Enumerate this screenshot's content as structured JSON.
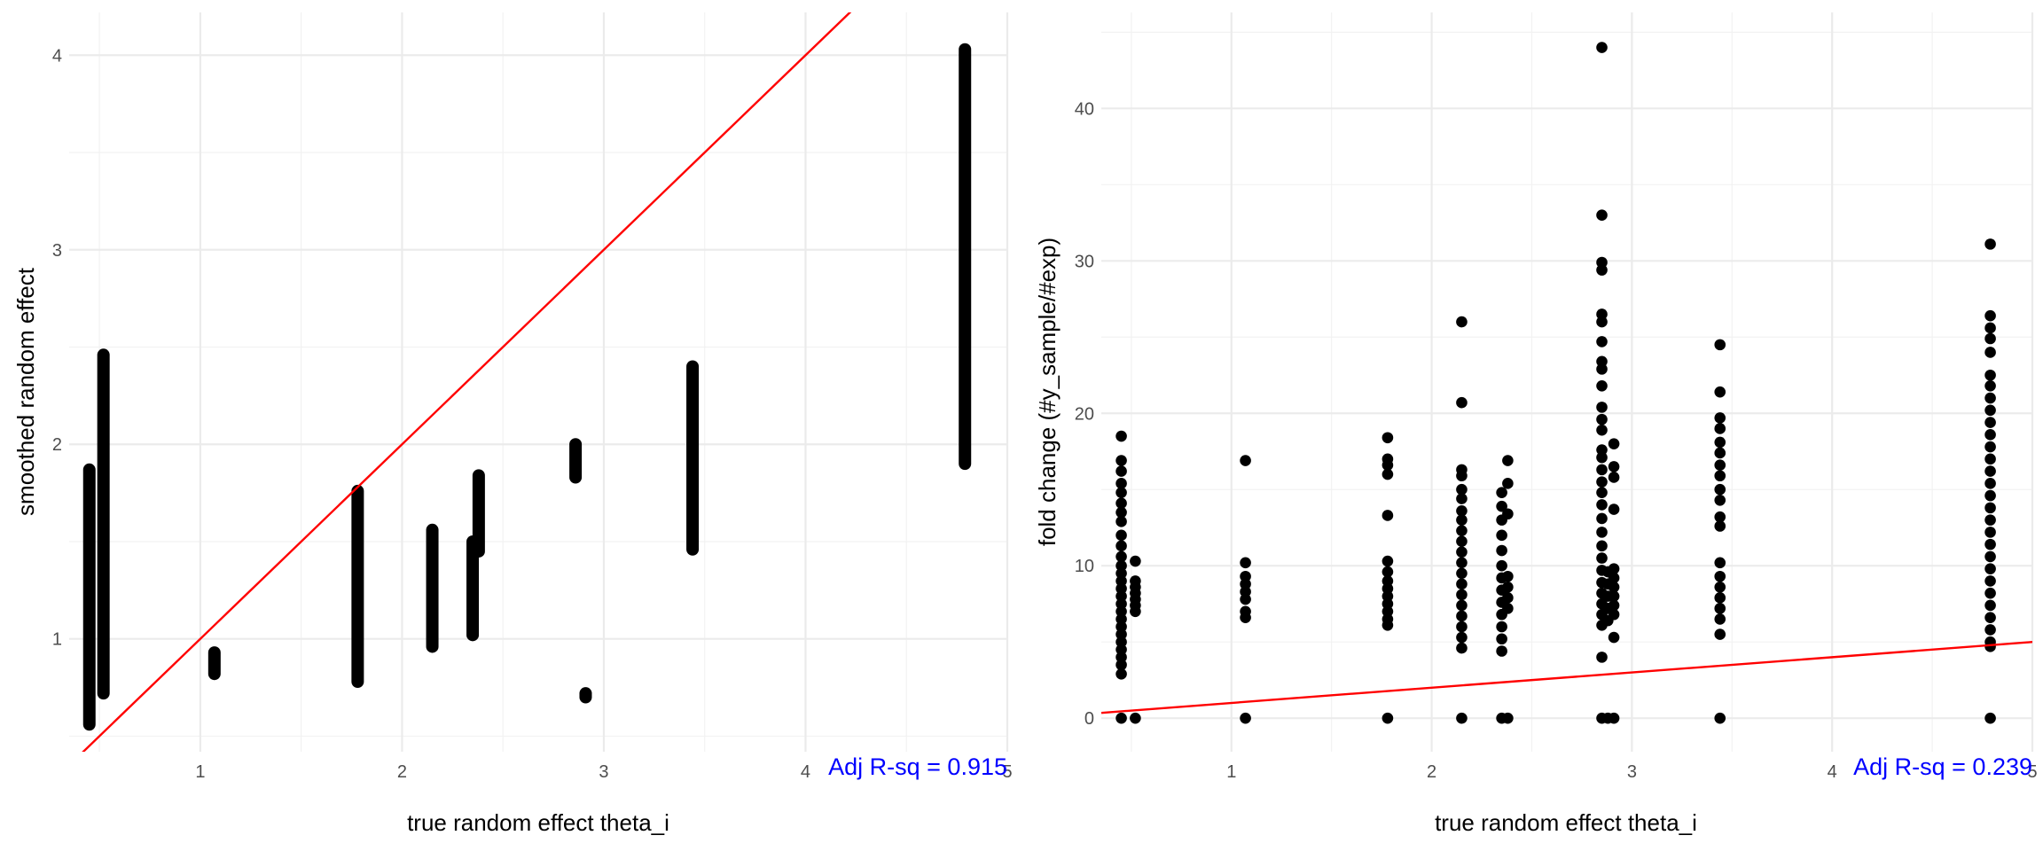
{
  "chart_data": [
    {
      "type": "scatter",
      "title": "",
      "xlabel": "true random effect theta_i",
      "ylabel": "smoothed random effect",
      "xlim": [
        0.35,
        5.0
      ],
      "ylim": [
        0.42,
        4.22
      ],
      "x_ticks": [
        1,
        2,
        3,
        4,
        5
      ],
      "y_ticks": [
        1,
        2,
        3,
        4
      ],
      "grid": true,
      "point_color": "#000000",
      "reference_line": {
        "color": "#ff0000",
        "intercept": 0,
        "slope": 1
      },
      "annotation": {
        "text": "Adj R-sq = 0.915",
        "color": "#0000ff",
        "position": "bottom-right"
      },
      "point_groups": [
        {
          "x": 0.45,
          "y_min": 0.56,
          "y_max": 1.87
        },
        {
          "x": 0.52,
          "y_min": 0.72,
          "y_max": 2.46
        },
        {
          "x": 1.07,
          "y_min": 0.82,
          "y_max": 0.93
        },
        {
          "x": 1.78,
          "y_min": 0.78,
          "y_max": 1.76
        },
        {
          "x": 2.15,
          "y_min": 0.96,
          "y_max": 1.56
        },
        {
          "x": 2.35,
          "y_min": 1.02,
          "y_max": 1.5
        },
        {
          "x": 2.38,
          "y_min": 1.45,
          "y_max": 1.84
        },
        {
          "x": 2.86,
          "y_min": 1.83,
          "y_max": 2.0
        },
        {
          "x": 2.91,
          "y_min": 0.7,
          "y_max": 0.72
        },
        {
          "x": 3.44,
          "y_min": 1.46,
          "y_max": 2.4
        },
        {
          "x": 4.79,
          "y_min": 1.9,
          "y_max": 4.03
        }
      ]
    },
    {
      "type": "scatter",
      "title": "",
      "xlabel": "true random effect theta_i",
      "ylabel": "fold change (#y_sample/#exp)",
      "xlim": [
        0.35,
        5.0
      ],
      "ylim": [
        -2.2,
        46.3
      ],
      "x_ticks": [
        1,
        2,
        3,
        4,
        5
      ],
      "y_ticks": [
        0,
        10,
        20,
        30,
        40
      ],
      "grid": true,
      "point_color": "#000000",
      "reference_line": {
        "color": "#ff0000",
        "intercept": 0,
        "slope": 1
      },
      "annotation": {
        "text": "Adj R-sq = 0.239",
        "color": "#0000ff",
        "position": "bottom-right"
      },
      "points": [
        {
          "x": 0.45,
          "y": 18.5
        },
        {
          "x": 0.45,
          "y": 16.9
        },
        {
          "x": 0.45,
          "y": 16.2
        },
        {
          "x": 0.45,
          "y": 15.4
        },
        {
          "x": 0.45,
          "y": 14.8
        },
        {
          "x": 0.45,
          "y": 14.1
        },
        {
          "x": 0.45,
          "y": 13.5
        },
        {
          "x": 0.45,
          "y": 12.9
        },
        {
          "x": 0.45,
          "y": 12.0
        },
        {
          "x": 0.45,
          "y": 11.3
        },
        {
          "x": 0.45,
          "y": 10.6
        },
        {
          "x": 0.45,
          "y": 10.0
        },
        {
          "x": 0.45,
          "y": 9.5
        },
        {
          "x": 0.45,
          "y": 9.0
        },
        {
          "x": 0.45,
          "y": 8.5
        },
        {
          "x": 0.45,
          "y": 8.0
        },
        {
          "x": 0.45,
          "y": 7.5
        },
        {
          "x": 0.45,
          "y": 7.0
        },
        {
          "x": 0.45,
          "y": 6.5
        },
        {
          "x": 0.45,
          "y": 6.0
        },
        {
          "x": 0.45,
          "y": 5.5
        },
        {
          "x": 0.45,
          "y": 5.0
        },
        {
          "x": 0.45,
          "y": 4.5
        },
        {
          "x": 0.45,
          "y": 4.0
        },
        {
          "x": 0.45,
          "y": 3.5
        },
        {
          "x": 0.45,
          "y": 2.9
        },
        {
          "x": 0.45,
          "y": 0.0
        },
        {
          "x": 0.52,
          "y": 10.3
        },
        {
          "x": 0.52,
          "y": 9.0
        },
        {
          "x": 0.52,
          "y": 8.6
        },
        {
          "x": 0.52,
          "y": 8.2
        },
        {
          "x": 0.52,
          "y": 7.8
        },
        {
          "x": 0.52,
          "y": 7.4
        },
        {
          "x": 0.52,
          "y": 7.0
        },
        {
          "x": 0.52,
          "y": 0.0
        },
        {
          "x": 1.07,
          "y": 16.9
        },
        {
          "x": 1.07,
          "y": 10.2
        },
        {
          "x": 1.07,
          "y": 9.3
        },
        {
          "x": 1.07,
          "y": 8.8
        },
        {
          "x": 1.07,
          "y": 8.3
        },
        {
          "x": 1.07,
          "y": 7.8
        },
        {
          "x": 1.07,
          "y": 7.0
        },
        {
          "x": 1.07,
          "y": 6.6
        },
        {
          "x": 1.07,
          "y": 0.0
        },
        {
          "x": 1.78,
          "y": 18.4
        },
        {
          "x": 1.78,
          "y": 17.0
        },
        {
          "x": 1.78,
          "y": 16.6
        },
        {
          "x": 1.78,
          "y": 16.0
        },
        {
          "x": 1.78,
          "y": 13.3
        },
        {
          "x": 1.78,
          "y": 10.3
        },
        {
          "x": 1.78,
          "y": 9.6
        },
        {
          "x": 1.78,
          "y": 9.0
        },
        {
          "x": 1.78,
          "y": 8.5
        },
        {
          "x": 1.78,
          "y": 8.0
        },
        {
          "x": 1.78,
          "y": 7.5
        },
        {
          "x": 1.78,
          "y": 7.0
        },
        {
          "x": 1.78,
          "y": 6.5
        },
        {
          "x": 1.78,
          "y": 6.1
        },
        {
          "x": 1.78,
          "y": 0.0
        },
        {
          "x": 2.15,
          "y": 26.0
        },
        {
          "x": 2.15,
          "y": 20.7
        },
        {
          "x": 2.15,
          "y": 16.3
        },
        {
          "x": 2.15,
          "y": 15.9
        },
        {
          "x": 2.15,
          "y": 15.0
        },
        {
          "x": 2.15,
          "y": 14.4
        },
        {
          "x": 2.15,
          "y": 13.6
        },
        {
          "x": 2.15,
          "y": 13.0
        },
        {
          "x": 2.15,
          "y": 12.3
        },
        {
          "x": 2.15,
          "y": 11.6
        },
        {
          "x": 2.15,
          "y": 10.9
        },
        {
          "x": 2.15,
          "y": 10.2
        },
        {
          "x": 2.15,
          "y": 9.5
        },
        {
          "x": 2.15,
          "y": 8.8
        },
        {
          "x": 2.15,
          "y": 8.1
        },
        {
          "x": 2.15,
          "y": 7.4
        },
        {
          "x": 2.15,
          "y": 6.7
        },
        {
          "x": 2.15,
          "y": 6.0
        },
        {
          "x": 2.15,
          "y": 5.3
        },
        {
          "x": 2.15,
          "y": 4.6
        },
        {
          "x": 2.15,
          "y": 0.0
        },
        {
          "x": 2.35,
          "y": 14.8
        },
        {
          "x": 2.35,
          "y": 13.9
        },
        {
          "x": 2.35,
          "y": 13.0
        },
        {
          "x": 2.35,
          "y": 12.0
        },
        {
          "x": 2.35,
          "y": 11.0
        },
        {
          "x": 2.35,
          "y": 10.0
        },
        {
          "x": 2.35,
          "y": 9.2
        },
        {
          "x": 2.35,
          "y": 8.4
        },
        {
          "x": 2.35,
          "y": 7.6
        },
        {
          "x": 2.35,
          "y": 6.8
        },
        {
          "x": 2.35,
          "y": 6.0
        },
        {
          "x": 2.35,
          "y": 5.2
        },
        {
          "x": 2.35,
          "y": 4.4
        },
        {
          "x": 2.35,
          "y": 0.0
        },
        {
          "x": 2.38,
          "y": 16.9
        },
        {
          "x": 2.38,
          "y": 15.4
        },
        {
          "x": 2.38,
          "y": 13.4
        },
        {
          "x": 2.38,
          "y": 9.3
        },
        {
          "x": 2.38,
          "y": 8.6
        },
        {
          "x": 2.38,
          "y": 7.9
        },
        {
          "x": 2.38,
          "y": 7.2
        },
        {
          "x": 2.38,
          "y": 0.0
        },
        {
          "x": 2.85,
          "y": 44.0
        },
        {
          "x": 2.85,
          "y": 33.0
        },
        {
          "x": 2.85,
          "y": 29.9
        },
        {
          "x": 2.85,
          "y": 29.4
        },
        {
          "x": 2.85,
          "y": 26.5
        },
        {
          "x": 2.85,
          "y": 26.0
        },
        {
          "x": 2.85,
          "y": 24.7
        },
        {
          "x": 2.85,
          "y": 23.4
        },
        {
          "x": 2.85,
          "y": 22.9
        },
        {
          "x": 2.85,
          "y": 21.8
        },
        {
          "x": 2.85,
          "y": 20.4
        },
        {
          "x": 2.85,
          "y": 19.6
        },
        {
          "x": 2.85,
          "y": 18.9
        },
        {
          "x": 2.85,
          "y": 17.6
        },
        {
          "x": 2.85,
          "y": 17.1
        },
        {
          "x": 2.85,
          "y": 16.3
        },
        {
          "x": 2.85,
          "y": 15.5
        },
        {
          "x": 2.85,
          "y": 14.8
        },
        {
          "x": 2.85,
          "y": 14.0
        },
        {
          "x": 2.85,
          "y": 13.1
        },
        {
          "x": 2.85,
          "y": 12.2
        },
        {
          "x": 2.85,
          "y": 11.3
        },
        {
          "x": 2.85,
          "y": 10.5
        },
        {
          "x": 2.85,
          "y": 9.7
        },
        {
          "x": 2.85,
          "y": 8.9
        },
        {
          "x": 2.85,
          "y": 8.2
        },
        {
          "x": 2.85,
          "y": 7.5
        },
        {
          "x": 2.85,
          "y": 6.8
        },
        {
          "x": 2.85,
          "y": 6.1
        },
        {
          "x": 2.85,
          "y": 4.0
        },
        {
          "x": 2.85,
          "y": 0.0
        },
        {
          "x": 2.88,
          "y": 9.6
        },
        {
          "x": 2.88,
          "y": 8.8
        },
        {
          "x": 2.88,
          "y": 8.0
        },
        {
          "x": 2.88,
          "y": 7.2
        },
        {
          "x": 2.88,
          "y": 6.4
        },
        {
          "x": 2.88,
          "y": 0.0
        },
        {
          "x": 2.91,
          "y": 18.0
        },
        {
          "x": 2.91,
          "y": 16.5
        },
        {
          "x": 2.91,
          "y": 15.8
        },
        {
          "x": 2.91,
          "y": 13.7
        },
        {
          "x": 2.91,
          "y": 9.8
        },
        {
          "x": 2.91,
          "y": 9.2
        },
        {
          "x": 2.91,
          "y": 8.6
        },
        {
          "x": 2.91,
          "y": 8.0
        },
        {
          "x": 2.91,
          "y": 7.4
        },
        {
          "x": 2.91,
          "y": 6.8
        },
        {
          "x": 2.91,
          "y": 5.3
        },
        {
          "x": 2.91,
          "y": 0.0
        },
        {
          "x": 3.44,
          "y": 24.5
        },
        {
          "x": 3.44,
          "y": 21.4
        },
        {
          "x": 3.44,
          "y": 19.7
        },
        {
          "x": 3.44,
          "y": 19.0
        },
        {
          "x": 3.44,
          "y": 18.1
        },
        {
          "x": 3.44,
          "y": 17.4
        },
        {
          "x": 3.44,
          "y": 16.6
        },
        {
          "x": 3.44,
          "y": 15.9
        },
        {
          "x": 3.44,
          "y": 15.0
        },
        {
          "x": 3.44,
          "y": 14.3
        },
        {
          "x": 3.44,
          "y": 13.2
        },
        {
          "x": 3.44,
          "y": 12.6
        },
        {
          "x": 3.44,
          "y": 10.2
        },
        {
          "x": 3.44,
          "y": 9.3
        },
        {
          "x": 3.44,
          "y": 8.6
        },
        {
          "x": 3.44,
          "y": 7.9
        },
        {
          "x": 3.44,
          "y": 7.2
        },
        {
          "x": 3.44,
          "y": 6.5
        },
        {
          "x": 3.44,
          "y": 5.5
        },
        {
          "x": 3.44,
          "y": 0.0
        },
        {
          "x": 4.79,
          "y": 31.1
        },
        {
          "x": 4.79,
          "y": 26.4
        },
        {
          "x": 4.79,
          "y": 25.6
        },
        {
          "x": 4.79,
          "y": 24.9
        },
        {
          "x": 4.79,
          "y": 24.0
        },
        {
          "x": 4.79,
          "y": 22.5
        },
        {
          "x": 4.79,
          "y": 21.8
        },
        {
          "x": 4.79,
          "y": 21.0
        },
        {
          "x": 4.79,
          "y": 20.2
        },
        {
          "x": 4.79,
          "y": 19.4
        },
        {
          "x": 4.79,
          "y": 18.6
        },
        {
          "x": 4.79,
          "y": 17.8
        },
        {
          "x": 4.79,
          "y": 17.0
        },
        {
          "x": 4.79,
          "y": 16.2
        },
        {
          "x": 4.79,
          "y": 15.4
        },
        {
          "x": 4.79,
          "y": 14.6
        },
        {
          "x": 4.79,
          "y": 13.8
        },
        {
          "x": 4.79,
          "y": 13.0
        },
        {
          "x": 4.79,
          "y": 12.2
        },
        {
          "x": 4.79,
          "y": 11.4
        },
        {
          "x": 4.79,
          "y": 10.6
        },
        {
          "x": 4.79,
          "y": 9.8
        },
        {
          "x": 4.79,
          "y": 9.0
        },
        {
          "x": 4.79,
          "y": 8.2
        },
        {
          "x": 4.79,
          "y": 7.4
        },
        {
          "x": 4.79,
          "y": 6.6
        },
        {
          "x": 4.79,
          "y": 5.8
        },
        {
          "x": 4.79,
          "y": 5.0
        },
        {
          "x": 4.79,
          "y": 4.7
        },
        {
          "x": 4.79,
          "y": 0.0
        }
      ]
    }
  ]
}
